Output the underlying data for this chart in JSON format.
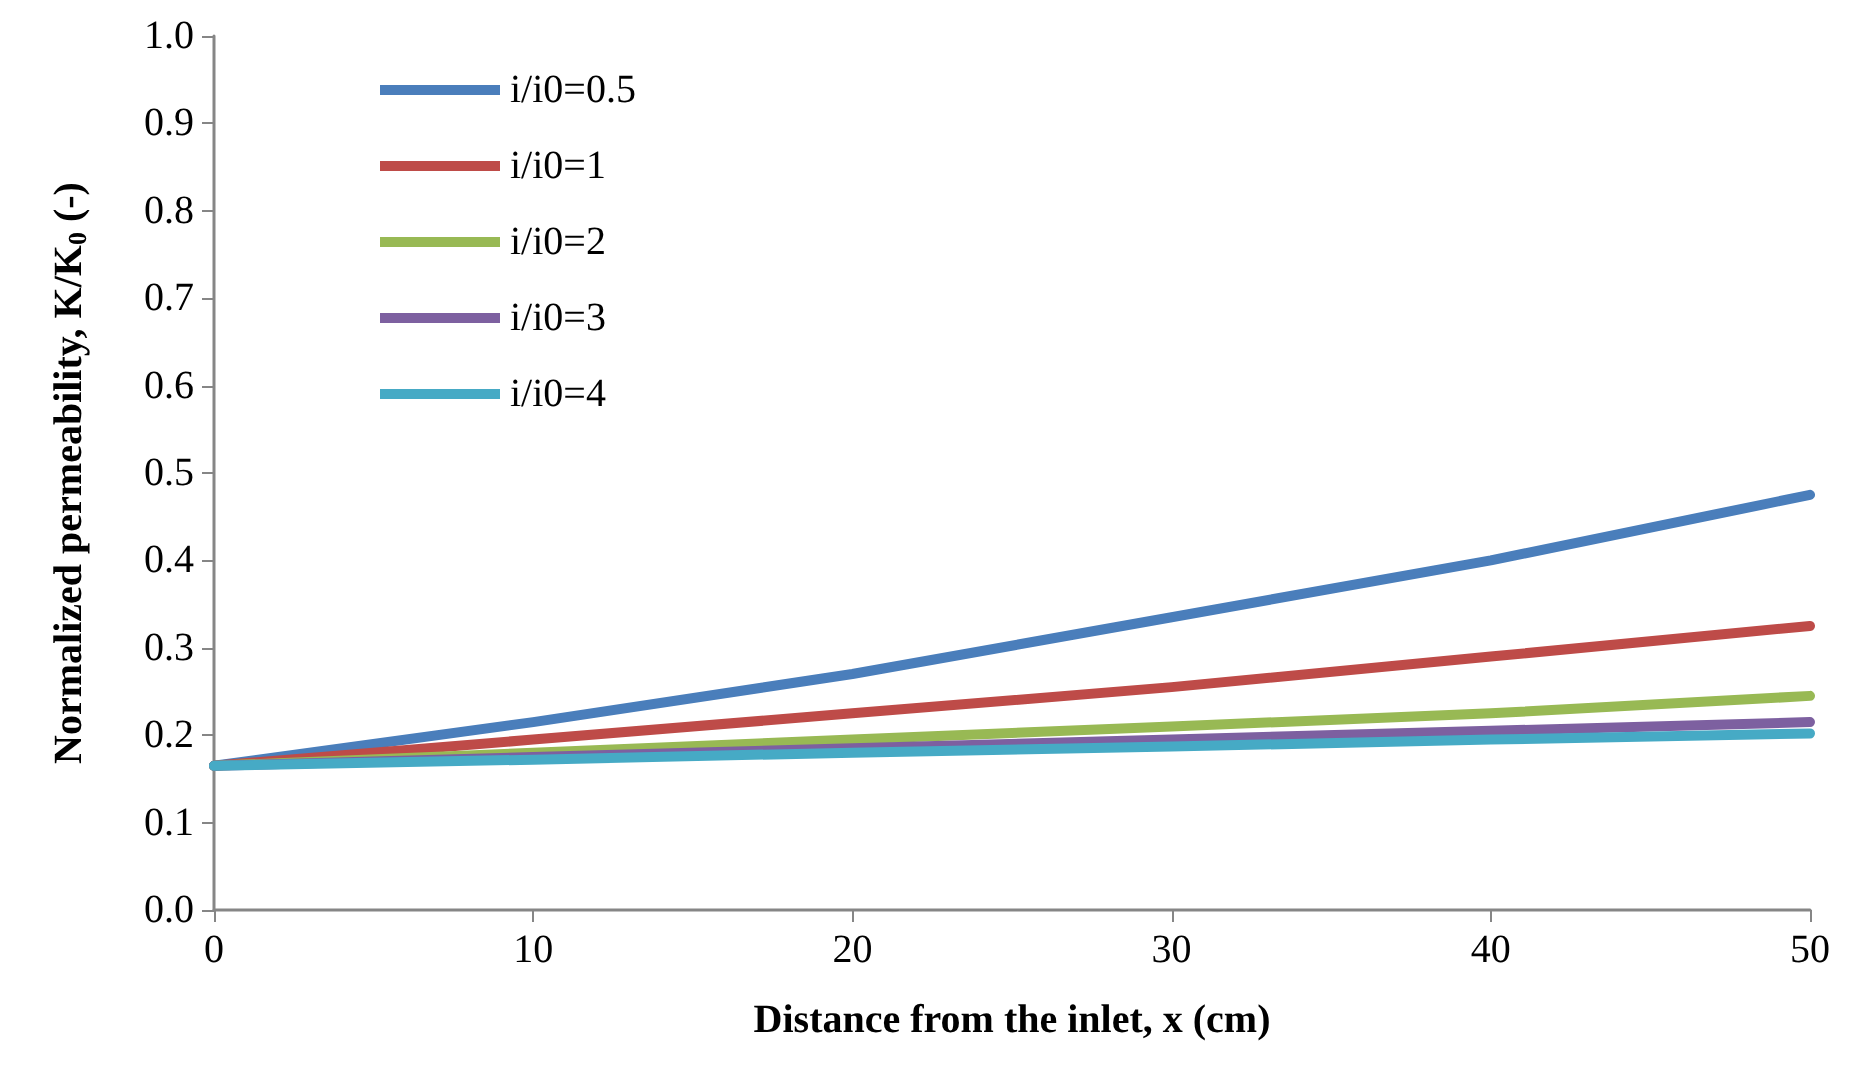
{
  "chart_data": {
    "type": "line",
    "xlabel": "Distance from the inlet, x (cm)",
    "ylabel": "Normalized permeability, K/K$_{0}$ (-)",
    "x": [
      0,
      10,
      20,
      30,
      40,
      50
    ],
    "series": [
      {
        "name": "i/i0=0.5",
        "color": "#4a7ebb",
        "values": [
          0.165,
          0.215,
          0.27,
          0.335,
          0.4,
          0.475
        ]
      },
      {
        "name": "i/i0=1",
        "color": "#be4b48",
        "values": [
          0.165,
          0.195,
          0.225,
          0.255,
          0.29,
          0.325
        ]
      },
      {
        "name": "i/i0=2",
        "color": "#98b954",
        "values": [
          0.165,
          0.18,
          0.195,
          0.21,
          0.225,
          0.245
        ]
      },
      {
        "name": "i/i0=3",
        "color": "#7d60a0",
        "values": [
          0.165,
          0.175,
          0.185,
          0.195,
          0.205,
          0.215
        ]
      },
      {
        "name": "i/i0=4",
        "color": "#46aac5",
        "values": [
          0.165,
          0.172,
          0.18,
          0.187,
          0.195,
          0.202
        ]
      }
    ],
    "xlim": [
      0,
      50
    ],
    "xticks": [
      0,
      10,
      20,
      30,
      40,
      50
    ],
    "ylim": [
      0,
      1
    ],
    "yticks": [
      {
        "value": 0,
        "label": "0.0"
      },
      {
        "value": 0.1,
        "label": "0.1"
      },
      {
        "value": 0.2,
        "label": "0.2"
      },
      {
        "value": 0.3,
        "label": "0.3"
      },
      {
        "value": 0.4,
        "label": "0.4"
      },
      {
        "value": 0.5,
        "label": "0.5"
      },
      {
        "value": 0.6,
        "label": "0.6"
      },
      {
        "value": 0.7,
        "label": "0.7"
      },
      {
        "value": 0.8,
        "label": "0.8"
      },
      {
        "value": 0.9,
        "label": "0.9"
      },
      {
        "value": 1,
        "label": "1.0"
      }
    ],
    "grid": false,
    "legend": "top left",
    "marker": "none",
    "line_style": "solid"
  }
}
